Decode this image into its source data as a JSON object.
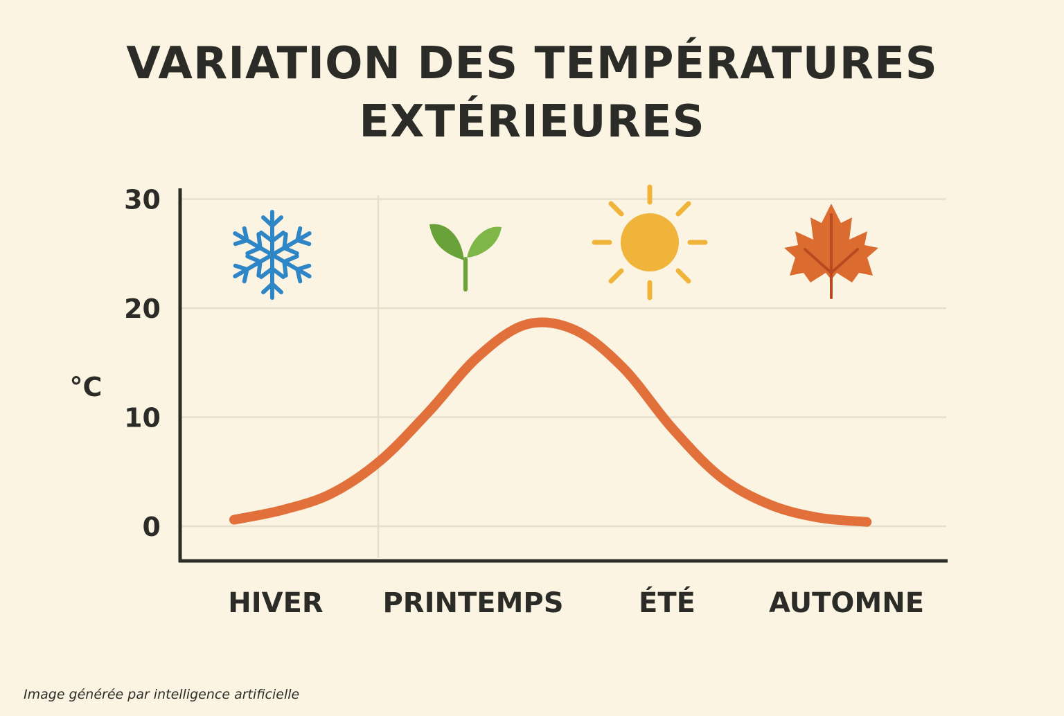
{
  "chart_data": {
    "type": "line",
    "title_lines": [
      "VARIATION DES TEMPÉRATURES",
      "EXTÉRIEURES"
    ],
    "ylabel": "°C",
    "xlabel": "",
    "ylim": [
      -3,
      30
    ],
    "yticks": [
      0,
      10,
      20,
      30
    ],
    "categories": [
      "HIVER",
      "PRINTEMPS",
      "ÉTÉ",
      "AUTOMNE"
    ],
    "category_icons": [
      "snowflake-icon",
      "sprout-icon",
      "sun-icon",
      "maple-leaf-icon"
    ],
    "grid": true,
    "series": [
      {
        "color": "#e2703a",
        "x": [
          0,
          0.25,
          0.5,
          0.75,
          1.0,
          1.25,
          1.5,
          1.75,
          2.0,
          2.25,
          2.5,
          2.75,
          3.0,
          3.25
        ],
        "values": [
          0.6,
          1.5,
          3.0,
          6.0,
          10.5,
          15.5,
          18.5,
          18.0,
          14.5,
          9.0,
          4.5,
          2.0,
          0.8,
          0.4
        ]
      }
    ]
  },
  "colors": {
    "background": "#fbf4e2",
    "grid": "#e6dfcc",
    "axis": "#2b2b27",
    "snowflake": "#2f86c6",
    "sprout": "#6aa23a",
    "sun": "#f0b43a",
    "leaf": "#dc6b30"
  },
  "footer": {
    "credit": "Image générée par intelligence artificielle"
  }
}
